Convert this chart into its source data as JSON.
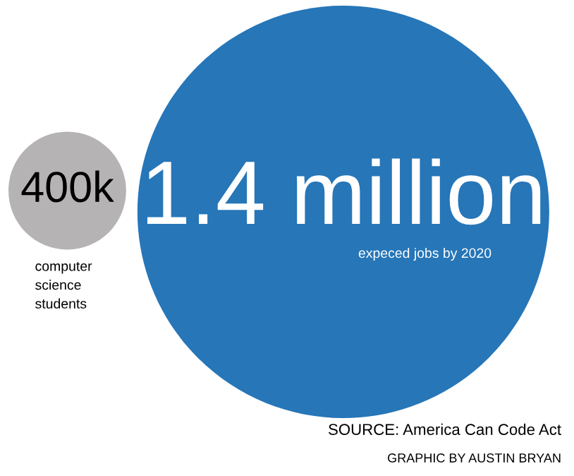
{
  "chart_data": {
    "type": "other",
    "categories": [
      "computer\nscience\nstudents",
      "expeced jobs by 2020"
    ],
    "values": [
      400000,
      1400000
    ],
    "value_labels": [
      "400k",
      "1.4 million"
    ],
    "colors": [
      "#b5b3b4",
      "#2676b8"
    ],
    "annotations": [
      "SOURCE: America Can Code Act",
      "GRAPHIC BY AUSTIN BRYAN"
    ]
  }
}
